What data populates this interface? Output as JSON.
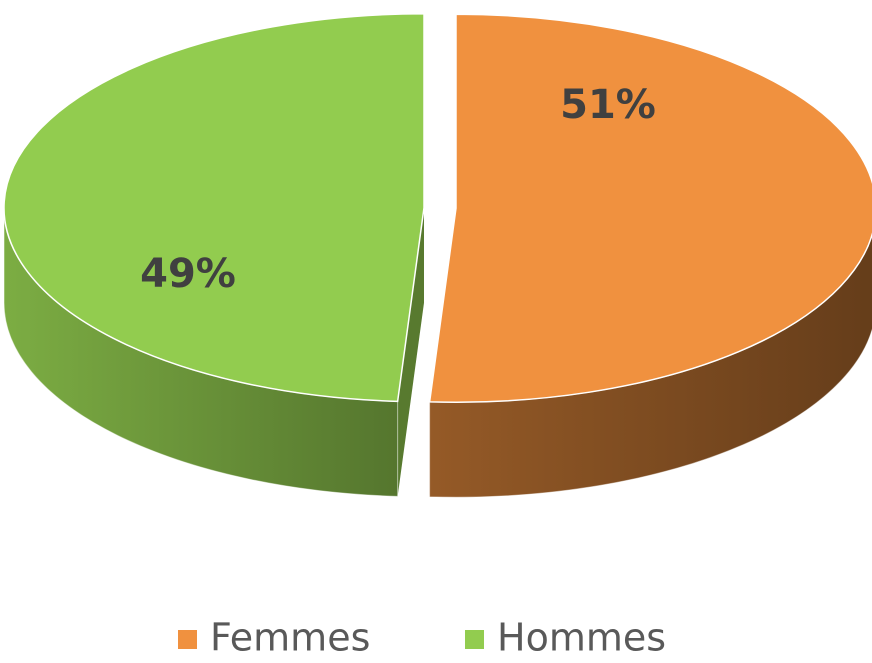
{
  "chart_data": {
    "type": "pie",
    "categories": [
      "Femmes",
      "Hommes"
    ],
    "values": [
      51,
      49
    ],
    "value_labels": [
      "51%",
      "49%"
    ],
    "colors": [
      "#f0913f",
      "#92cc4f"
    ],
    "legend": "bottom"
  }
}
